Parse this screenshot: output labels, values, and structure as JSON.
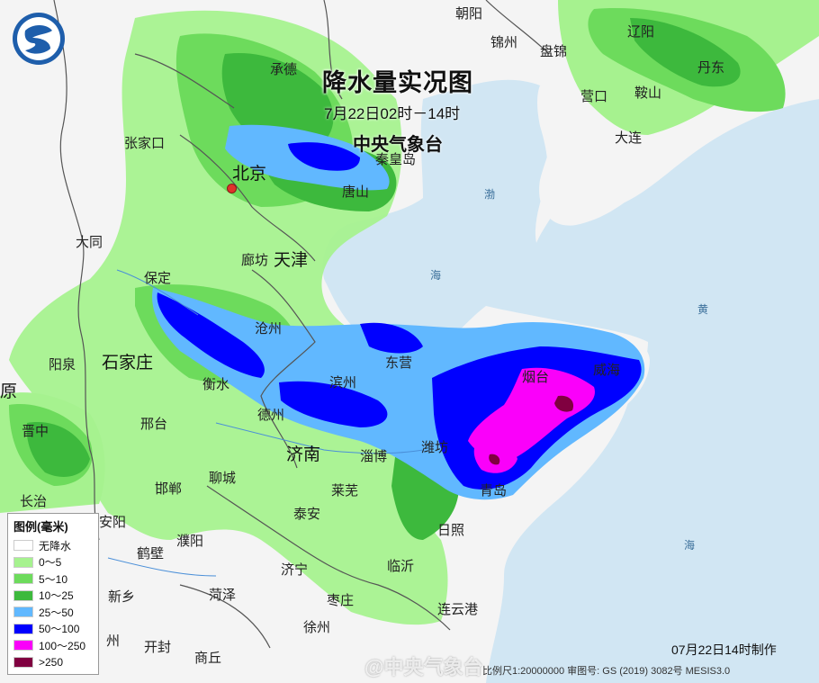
{
  "map": {
    "title": "降水量实况图",
    "subtitle": "7月22日02时－14时",
    "organization": "中央气象台",
    "footer_made": "07月22日14时制作",
    "footer_scale": "比例尺1:20000000  审图号: GS (2019) 3082号 MESIS3.0",
    "watermark": "@中央气象台",
    "logo_icon": "cma-logo-icon"
  },
  "legend": {
    "title": "图例(毫米)",
    "items": [
      {
        "label": "无降水",
        "color": "#ffffff"
      },
      {
        "label": "0～5",
        "color": "#a6f28f"
      },
      {
        "label": "5～10",
        "color": "#6ddb5c"
      },
      {
        "label": "10～25",
        "color": "#3db93d"
      },
      {
        "label": "25～50",
        "color": "#61b8ff"
      },
      {
        "label": "50～100",
        "color": "#0000ff"
      },
      {
        "label": "100～250",
        "color": "#fa00fa"
      },
      {
        "label": ">250",
        "color": "#800040"
      }
    ]
  },
  "places": {
    "chaoyang": "朝阳",
    "jinzhou": "锦州",
    "panjin": "盘锦",
    "liaoyang": "辽阳",
    "dandong": "丹东",
    "yingkou": "营口",
    "anshan": "鞍山",
    "dalian": "大连",
    "chengde": "承德",
    "zhangjiakou": "张家口",
    "beijing": "北京",
    "qinhuangdao": "秦皇岛",
    "tangshan": "唐山",
    "datong": "大同",
    "langfang": "廊坊",
    "tianjin": "天津",
    "baoding": "保定",
    "cangzhou": "沧州",
    "shijiazhuang": "石家庄",
    "yangquan": "阳泉",
    "hengshui": "衡水",
    "binzhou": "滨州",
    "dongying": "东营",
    "yantai": "烟台",
    "weihai": "威海",
    "taiyuan": "太原",
    "jinzhong": "晋中",
    "xingtai": "邢台",
    "dezhou": "德州",
    "jinan": "济南",
    "zibo": "淄博",
    "weifang": "潍坊",
    "qingdao": "青岛",
    "liaocheng": "聊城",
    "laiwu": "莱芜",
    "handan": "邯郸",
    "changzhi": "长治",
    "anyang": "安阳",
    "taian": "泰安",
    "rizhao": "日照",
    "hebi": "鹤壁",
    "puyang": "濮阳",
    "jining": "济宁",
    "linyi": "临沂",
    "xinxiang": "新乡",
    "heze": "菏泽",
    "zaozhuang": "枣庄",
    "lianyungang": "连云港",
    "kaifeng": "开封",
    "shangqiu": "商丘",
    "xuzhou": "徐州",
    "zhou_fragment": "州",
    "yuan_fragment": "原"
  },
  "seas": {
    "bo": "渤",
    "hai": "海",
    "huang": "黄",
    "hai2": "海"
  }
}
